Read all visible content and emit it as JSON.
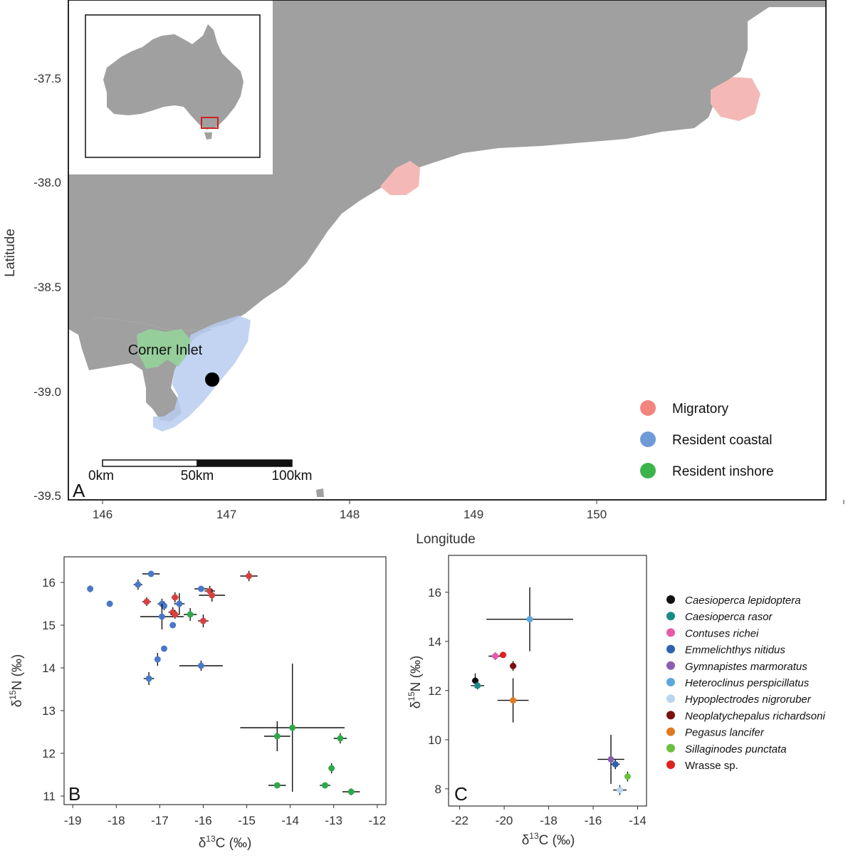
{
  "panel_a": {
    "label": "A",
    "xlabel": "Longitude",
    "ylabel": "Latitude",
    "x_ticks": [
      "146",
      "147",
      "148",
      "149",
      "150"
    ],
    "y_ticks": [
      "-37.5",
      "-38.0",
      "-38.5",
      "-39.0",
      "-39.5"
    ],
    "place_label": "Corner Inlet",
    "scalebar": [
      "0km",
      "50km",
      "100km"
    ],
    "legend": [
      {
        "label": "Migratory",
        "color": "#f4857e"
      },
      {
        "label": "Resident coastal",
        "color": "#6f9ad8"
      },
      {
        "label": "Resident inshore",
        "color": "#3cb44b"
      }
    ]
  },
  "panel_b": {
    "label": "B",
    "xlabel_prefix": "δ",
    "xlabel_sup": "13",
    "xlabel_suffix": "C (‰)",
    "ylabel_prefix": "δ",
    "ylabel_sup": "15",
    "ylabel_suffix": "N (‰)",
    "x_ticks": [
      "-19",
      "-18",
      "-17",
      "-16",
      "-15",
      "-14",
      "-13",
      "-12"
    ],
    "y_ticks": [
      "11",
      "12",
      "13",
      "14",
      "15",
      "16"
    ]
  },
  "panel_c": {
    "label": "C",
    "xlabel_prefix": "δ",
    "xlabel_sup": "13",
    "xlabel_suffix": "C (‰)",
    "ylabel_prefix": "δ",
    "ylabel_sup": "15",
    "ylabel_suffix": "N (‰)",
    "x_ticks": [
      "-22",
      "-20",
      "-18",
      "-16",
      "-14"
    ],
    "y_ticks": [
      "8",
      "10",
      "12",
      "14",
      "16"
    ]
  },
  "species_legend": [
    {
      "label": "Caesioperca lepidoptera",
      "color": "#111111",
      "italic": true
    },
    {
      "label": "Caesioperca rasor",
      "color": "#1a8a8a",
      "italic": true
    },
    {
      "label": "Contuses richei",
      "color": "#e85aa8",
      "italic": true
    },
    {
      "label": "Emmelichthys nitidus",
      "color": "#2e62b0",
      "italic": true
    },
    {
      "label": "Gymnapistes marmoratus",
      "color": "#8a5fb0",
      "italic": true
    },
    {
      "label": "Heteroclinus perspicillatus",
      "color": "#5aa8dc",
      "italic": true
    },
    {
      "label": "Hypoplectrodes nigroruber",
      "color": "#b8d6ee",
      "italic": true
    },
    {
      "label": "Neoplatychepalus richardsoni",
      "color": "#7a1010",
      "italic": true
    },
    {
      "label": "Pegasus lancifer",
      "color": "#e07a20",
      "italic": true
    },
    {
      "label": "Sillaginodes punctata",
      "color": "#6cc040",
      "italic": true
    },
    {
      "label": "Wrasse sp.",
      "color": "#e02020",
      "italic": false
    }
  ],
  "chart_data": [
    {
      "type": "scatter",
      "panel": "B",
      "xlabel": "δ13C (‰)",
      "ylabel": "δ15N (‰)",
      "xlim": [
        -19.2,
        -11.8
      ],
      "ylim": [
        10.8,
        16.6
      ],
      "series": [
        {
          "name": "Resident coastal",
          "color": "#4a78c8",
          "points": [
            {
              "x": -18.6,
              "y": 15.85,
              "xerr": 0.05,
              "yerr": 0.08
            },
            {
              "x": -18.15,
              "y": 15.5,
              "xerr": 0.05,
              "yerr": 0.05
            },
            {
              "x": -17.5,
              "y": 15.95,
              "xerr": 0.1,
              "yerr": 0.12
            },
            {
              "x": -17.2,
              "y": 16.2,
              "xerr": 0.2,
              "yerr": 0.05
            },
            {
              "x": -16.95,
              "y": 15.5,
              "xerr": 0.1,
              "yerr": 0.12
            },
            {
              "x": -16.9,
              "y": 15.45,
              "xerr": 0.05,
              "yerr": 0.1
            },
            {
              "x": -16.55,
              "y": 15.5,
              "xerr": 0.12,
              "yerr": 0.25
            },
            {
              "x": -16.95,
              "y": 15.2,
              "xerr": 0.5,
              "yerr": 0.3
            },
            {
              "x": -16.7,
              "y": 15.0,
              "xerr": 0.05,
              "yerr": 0.05
            },
            {
              "x": -16.9,
              "y": 14.45,
              "xerr": 0.05,
              "yerr": 0.05
            },
            {
              "x": -17.05,
              "y": 14.2,
              "xerr": 0.05,
              "yerr": 0.15
            },
            {
              "x": -17.25,
              "y": 13.75,
              "xerr": 0.12,
              "yerr": 0.15
            },
            {
              "x": -16.05,
              "y": 14.05,
              "xerr": 0.5,
              "yerr": 0.12
            },
            {
              "x": -16.05,
              "y": 15.85,
              "xerr": 0.15,
              "yerr": 0.05
            }
          ]
        },
        {
          "name": "Migratory",
          "color": "#d84040",
          "points": [
            {
              "x": -17.3,
              "y": 15.55,
              "xerr": 0.1,
              "yerr": 0.1
            },
            {
              "x": -16.7,
              "y": 15.3,
              "xerr": 0.1,
              "yerr": 0.12
            },
            {
              "x": -16.65,
              "y": 15.65,
              "xerr": 0.08,
              "yerr": 0.12
            },
            {
              "x": -16.65,
              "y": 15.25,
              "xerr": 0.1,
              "yerr": 0.1
            },
            {
              "x": -16.0,
              "y": 15.1,
              "xerr": 0.12,
              "yerr": 0.15
            },
            {
              "x": -15.85,
              "y": 15.8,
              "xerr": 0.12,
              "yerr": 0.12
            },
            {
              "x": -15.8,
              "y": 15.7,
              "xerr": 0.3,
              "yerr": 0.15
            },
            {
              "x": -14.95,
              "y": 16.15,
              "xerr": 0.2,
              "yerr": 0.12
            }
          ]
        },
        {
          "name": "Resident inshore",
          "color": "#2ea84a",
          "points": [
            {
              "x": -16.3,
              "y": 15.25,
              "xerr": 0.15,
              "yerr": 0.15
            },
            {
              "x": -14.3,
              "y": 12.4,
              "xerr": 0.3,
              "yerr": 0.35
            },
            {
              "x": -13.95,
              "y": 12.6,
              "xerr": 1.2,
              "yerr": 1.5
            },
            {
              "x": -14.3,
              "y": 11.25,
              "xerr": 0.2,
              "yerr": 0.05
            },
            {
              "x": -13.2,
              "y": 11.25,
              "xerr": 0.12,
              "yerr": 0.05
            },
            {
              "x": -13.05,
              "y": 11.65,
              "xerr": 0.05,
              "yerr": 0.12
            },
            {
              "x": -12.85,
              "y": 12.35,
              "xerr": 0.15,
              "yerr": 0.12
            },
            {
              "x": -12.6,
              "y": 11.1,
              "xerr": 0.2,
              "yerr": 0.08
            }
          ]
        }
      ]
    },
    {
      "type": "scatter",
      "panel": "C",
      "xlabel": "δ13C (‰)",
      "ylabel": "δ15N (‰)",
      "xlim": [
        -22.5,
        -13.6
      ],
      "ylim": [
        7.3,
        17.5
      ],
      "points": [
        {
          "species": "Caesioperca lepidoptera",
          "x": -21.3,
          "y": 12.4,
          "xerr": 0.15,
          "yerr": 0.3
        },
        {
          "species": "Caesioperca rasor",
          "x": -21.2,
          "y": 12.2,
          "xerr": 0.3,
          "yerr": 0.15
        },
        {
          "species": "Contuses richei",
          "x": -20.4,
          "y": 13.4,
          "xerr": 0.3,
          "yerr": 0.15
        },
        {
          "species": "Wrasse sp.",
          "x": -20.05,
          "y": 13.45,
          "xerr": 0.15,
          "yerr": 0.1
        },
        {
          "species": "Neoplatychepalus richardsoni",
          "x": -19.6,
          "y": 13.0,
          "xerr": 0.15,
          "yerr": 0.2
        },
        {
          "species": "Pegasus lancifer",
          "x": -19.6,
          "y": 11.6,
          "xerr": 0.7,
          "yerr": 0.9
        },
        {
          "species": "Heteroclinus perspicillatus",
          "x": -18.85,
          "y": 14.9,
          "xerr": 1.95,
          "yerr": 1.3
        },
        {
          "species": "Gymnapistes marmoratus",
          "x": -15.2,
          "y": 9.2,
          "xerr": 0.6,
          "yerr": 1.0
        },
        {
          "species": "Emmelichthys nitidus",
          "x": -15.0,
          "y": 9.0,
          "xerr": 0.2,
          "yerr": 0.2
        },
        {
          "species": "Hypoplectrodes nigroruber",
          "x": -14.8,
          "y": 7.95,
          "xerr": 0.3,
          "yerr": 0.2
        },
        {
          "species": "Sillaginodes punctata",
          "x": -14.45,
          "y": 8.5,
          "xerr": 0.05,
          "yerr": 0.2
        }
      ]
    }
  ]
}
